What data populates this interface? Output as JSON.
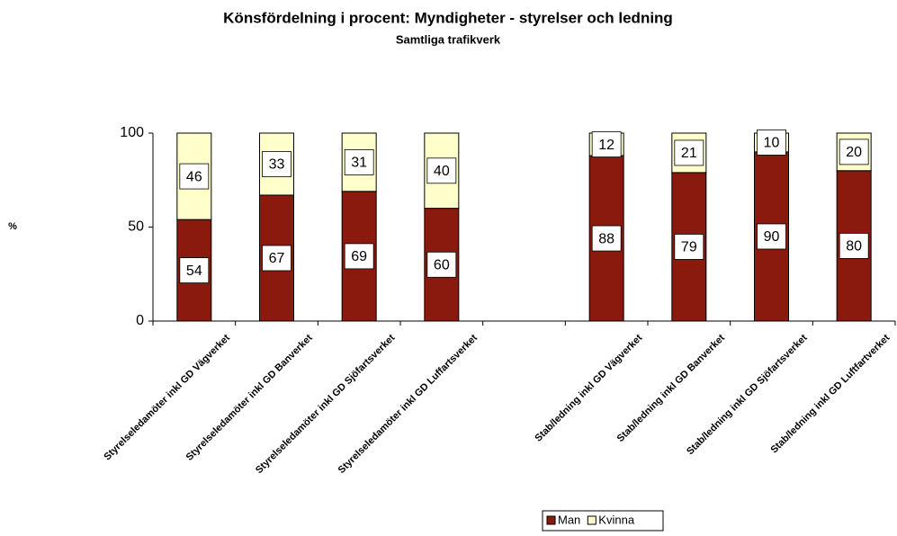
{
  "chart_data": {
    "type": "stacked_bar",
    "title": "Könsfördelning i procent: Myndigheter - styrelser och ledning",
    "subtitle": "Samtliga trafikverk",
    "y_label": "%",
    "categories": [
      "Styrelseledamöter inkl GD Vägverket",
      "Styrelseledamöter inkl GD Banverket",
      "Styrelseledamöter inkl GD Sjöfartsverket",
      "Styrelseledamöter inkl GD Luffartsverket",
      null,
      "Stab/ledning inkl GD Vägverket",
      "Stab/ledning inkl GD Banverket",
      "Stab/ledning inkl GD Sjöfartsverket",
      "Stab/ledning inkl GD Luftfartverket"
    ],
    "series": [
      {
        "name": "Man",
        "color": "#8b1a0e",
        "values": [
          54,
          67,
          69,
          60,
          null,
          88,
          79,
          90,
          80
        ]
      },
      {
        "name": "Kvinna",
        "color": "#ffffcc",
        "values": [
          46,
          33,
          31,
          40,
          null,
          12,
          21,
          10,
          20
        ]
      }
    ],
    "ylim": [
      0,
      100
    ],
    "yticks": [
      0,
      50,
      100
    ],
    "legend": "bottom"
  }
}
